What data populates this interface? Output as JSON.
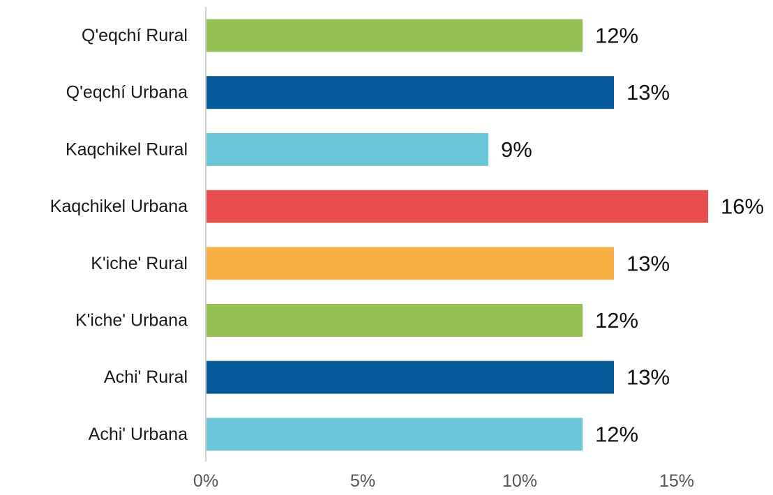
{
  "chart_data": {
    "type": "bar",
    "orientation": "horizontal",
    "categories": [
      "Q'eqchí Rural",
      "Q'eqchí Urbana",
      "Kaqchikel Rural",
      "Kaqchikel Urbana",
      "K'iche' Rural",
      "K'iche' Urbana",
      "Achi' Rural",
      "Achi' Urbana"
    ],
    "values": [
      12,
      13,
      9,
      16,
      13,
      12,
      13,
      12
    ],
    "value_labels": [
      "12%",
      "13%",
      "9%",
      "16%",
      "13%",
      "12%",
      "13%",
      "12%"
    ],
    "colors": [
      "#95c153",
      "#045a9b",
      "#6cc6d9",
      "#e84c4d",
      "#f7b041",
      "#95c153",
      "#045a9b",
      "#6cc6d9"
    ],
    "x_ticks": [
      0,
      5,
      10,
      15
    ],
    "x_tick_labels": [
      "0%",
      "5%",
      "10%",
      "15%"
    ],
    "xlim": [
      0,
      16
    ],
    "axis_color": "#d0d0d0",
    "grid": false,
    "legend": "none"
  }
}
